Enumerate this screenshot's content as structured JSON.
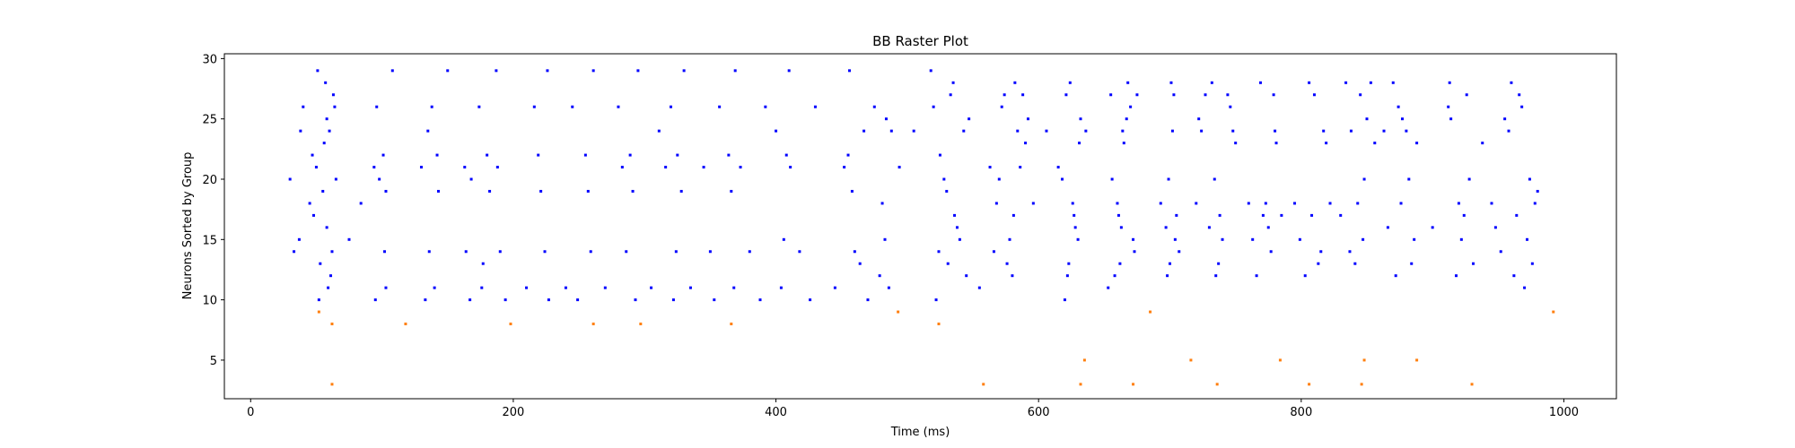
{
  "chart_data": {
    "type": "scatter",
    "title": "BB Raster Plot",
    "xlabel": "Time (ms)",
    "ylabel": "Neurons Sorted by Group",
    "xlim": [
      -20,
      1040
    ],
    "ylim": [
      1.8,
      30.4
    ],
    "xticks": [
      0,
      200,
      400,
      600,
      800,
      1000
    ],
    "yticks": [
      5,
      10,
      15,
      20,
      25,
      30
    ],
    "grid": false,
    "series": [
      {
        "color": "#0000ff",
        "points": [
          [
            30,
            20
          ],
          [
            33,
            14
          ],
          [
            37,
            15
          ],
          [
            38,
            24
          ],
          [
            40,
            26
          ],
          [
            45,
            18
          ],
          [
            47,
            22
          ],
          [
            48,
            17
          ],
          [
            50,
            21
          ],
          [
            51,
            29
          ],
          [
            52,
            10
          ],
          [
            53,
            13
          ],
          [
            55,
            19
          ],
          [
            56,
            23
          ],
          [
            57,
            28
          ],
          [
            58,
            16
          ],
          [
            58,
            25
          ],
          [
            59,
            11
          ],
          [
            60,
            24
          ],
          [
            61,
            12
          ],
          [
            62,
            14
          ],
          [
            63,
            27
          ],
          [
            64,
            26
          ],
          [
            65,
            20
          ],
          [
            75,
            15
          ],
          [
            84,
            18
          ],
          [
            94,
            21
          ],
          [
            95,
            10
          ],
          [
            96,
            26
          ],
          [
            98,
            20
          ],
          [
            101,
            22
          ],
          [
            102,
            14
          ],
          [
            103,
            19
          ],
          [
            103,
            11
          ],
          [
            108,
            29
          ],
          [
            130,
            21
          ],
          [
            133,
            10
          ],
          [
            135,
            24
          ],
          [
            136,
            14
          ],
          [
            138,
            26
          ],
          [
            140,
            11
          ],
          [
            142,
            22
          ],
          [
            143,
            19
          ],
          [
            150,
            29
          ],
          [
            163,
            21
          ],
          [
            164,
            14
          ],
          [
            167,
            10
          ],
          [
            168,
            20
          ],
          [
            174,
            26
          ],
          [
            176,
            11
          ],
          [
            177,
            13
          ],
          [
            180,
            22
          ],
          [
            182,
            19
          ],
          [
            187,
            29
          ],
          [
            188,
            21
          ],
          [
            190,
            14
          ],
          [
            194,
            10
          ],
          [
            210,
            11
          ],
          [
            216,
            26
          ],
          [
            219,
            22
          ],
          [
            221,
            19
          ],
          [
            224,
            14
          ],
          [
            226,
            29
          ],
          [
            227,
            10
          ],
          [
            240,
            11
          ],
          [
            245,
            26
          ],
          [
            249,
            10
          ],
          [
            255,
            22
          ],
          [
            257,
            19
          ],
          [
            259,
            14
          ],
          [
            261,
            29
          ],
          [
            270,
            11
          ],
          [
            280,
            26
          ],
          [
            283,
            21
          ],
          [
            286,
            14
          ],
          [
            289,
            22
          ],
          [
            291,
            19
          ],
          [
            293,
            10
          ],
          [
            295,
            29
          ],
          [
            305,
            11
          ],
          [
            311,
            24
          ],
          [
            316,
            21
          ],
          [
            320,
            26
          ],
          [
            322,
            10
          ],
          [
            324,
            14
          ],
          [
            325,
            22
          ],
          [
            328,
            19
          ],
          [
            330,
            29
          ],
          [
            335,
            11
          ],
          [
            345,
            21
          ],
          [
            350,
            14
          ],
          [
            353,
            10
          ],
          [
            357,
            26
          ],
          [
            364,
            22
          ],
          [
            366,
            19
          ],
          [
            368,
            11
          ],
          [
            369,
            29
          ],
          [
            373,
            21
          ],
          [
            380,
            14
          ],
          [
            388,
            10
          ],
          [
            392,
            26
          ],
          [
            400,
            24
          ],
          [
            404,
            11
          ],
          [
            406,
            15
          ],
          [
            408,
            22
          ],
          [
            410,
            29
          ],
          [
            411,
            21
          ],
          [
            418,
            14
          ],
          [
            426,
            10
          ],
          [
            430,
            26
          ],
          [
            445,
            11
          ],
          [
            452,
            21
          ],
          [
            455,
            22
          ],
          [
            456,
            29
          ],
          [
            458,
            19
          ],
          [
            460,
            14
          ],
          [
            464,
            13
          ],
          [
            467,
            24
          ],
          [
            470,
            10
          ],
          [
            475,
            26
          ],
          [
            479,
            12
          ],
          [
            481,
            18
          ],
          [
            483,
            15
          ],
          [
            484,
            25
          ],
          [
            486,
            11
          ],
          [
            488,
            24
          ],
          [
            494,
            21
          ],
          [
            505,
            24
          ],
          [
            518,
            29
          ],
          [
            520,
            26
          ],
          [
            522,
            10
          ],
          [
            524,
            14
          ],
          [
            525,
            22
          ],
          [
            528,
            20
          ],
          [
            530,
            19
          ],
          [
            531,
            13
          ],
          [
            533,
            27
          ],
          [
            535,
            28
          ],
          [
            536,
            17
          ],
          [
            538,
            16
          ],
          [
            540,
            15
          ],
          [
            543,
            24
          ],
          [
            545,
            12
          ],
          [
            547,
            25
          ],
          [
            555,
            11
          ],
          [
            563,
            21
          ],
          [
            566,
            14
          ],
          [
            568,
            18
          ],
          [
            570,
            20
          ],
          [
            572,
            26
          ],
          [
            574,
            27
          ],
          [
            576,
            13
          ],
          [
            578,
            15
          ],
          [
            580,
            12
          ],
          [
            581,
            17
          ],
          [
            582,
            28
          ],
          [
            584,
            24
          ],
          [
            586,
            21
          ],
          [
            588,
            27
          ],
          [
            590,
            23
          ],
          [
            592,
            25
          ],
          [
            596,
            18
          ],
          [
            606,
            24
          ],
          [
            615,
            21
          ],
          [
            618,
            20
          ],
          [
            620,
            10
          ],
          [
            621,
            27
          ],
          [
            622,
            12
          ],
          [
            623,
            13
          ],
          [
            624,
            28
          ],
          [
            626,
            18
          ],
          [
            627,
            17
          ],
          [
            628,
            16
          ],
          [
            630,
            15
          ],
          [
            631,
            23
          ],
          [
            632,
            25
          ],
          [
            636,
            24
          ],
          [
            653,
            11
          ],
          [
            655,
            27
          ],
          [
            656,
            20
          ],
          [
            658,
            12
          ],
          [
            660,
            18
          ],
          [
            661,
            17
          ],
          [
            662,
            13
          ],
          [
            663,
            16
          ],
          [
            664,
            24
          ],
          [
            665,
            23
          ],
          [
            667,
            25
          ],
          [
            668,
            28
          ],
          [
            670,
            26
          ],
          [
            672,
            15
          ],
          [
            673,
            14
          ],
          [
            675,
            27
          ],
          [
            693,
            18
          ],
          [
            697,
            16
          ],
          [
            698,
            12
          ],
          [
            699,
            20
          ],
          [
            700,
            13
          ],
          [
            701,
            28
          ],
          [
            702,
            24
          ],
          [
            703,
            27
          ],
          [
            704,
            15
          ],
          [
            705,
            17
          ],
          [
            707,
            14
          ],
          [
            720,
            18
          ],
          [
            722,
            25
          ],
          [
            724,
            24
          ],
          [
            727,
            27
          ],
          [
            730,
            16
          ],
          [
            732,
            28
          ],
          [
            734,
            20
          ],
          [
            735,
            12
          ],
          [
            737,
            13
          ],
          [
            738,
            17
          ],
          [
            740,
            15
          ],
          [
            744,
            27
          ],
          [
            746,
            26
          ],
          [
            748,
            24
          ],
          [
            750,
            23
          ],
          [
            760,
            18
          ],
          [
            763,
            15
          ],
          [
            766,
            12
          ],
          [
            769,
            28
          ],
          [
            771,
            17
          ],
          [
            773,
            18
          ],
          [
            775,
            16
          ],
          [
            777,
            14
          ],
          [
            779,
            27
          ],
          [
            780,
            24
          ],
          [
            781,
            23
          ],
          [
            785,
            17
          ],
          [
            795,
            18
          ],
          [
            799,
            15
          ],
          [
            803,
            12
          ],
          [
            806,
            28
          ],
          [
            808,
            17
          ],
          [
            810,
            27
          ],
          [
            813,
            13
          ],
          [
            815,
            14
          ],
          [
            817,
            24
          ],
          [
            819,
            23
          ],
          [
            822,
            18
          ],
          [
            830,
            17
          ],
          [
            834,
            28
          ],
          [
            837,
            14
          ],
          [
            838,
            24
          ],
          [
            841,
            13
          ],
          [
            843,
            18
          ],
          [
            845,
            27
          ],
          [
            847,
            15
          ],
          [
            848,
            20
          ],
          [
            850,
            25
          ],
          [
            853,
            28
          ],
          [
            856,
            23
          ],
          [
            863,
            24
          ],
          [
            866,
            16
          ],
          [
            870,
            28
          ],
          [
            872,
            12
          ],
          [
            874,
            26
          ],
          [
            876,
            18
          ],
          [
            877,
            25
          ],
          [
            880,
            24
          ],
          [
            882,
            20
          ],
          [
            884,
            13
          ],
          [
            886,
            15
          ],
          [
            888,
            23
          ],
          [
            900,
            16
          ],
          [
            912,
            26
          ],
          [
            913,
            28
          ],
          [
            914,
            25
          ],
          [
            918,
            12
          ],
          [
            920,
            18
          ],
          [
            922,
            15
          ],
          [
            924,
            17
          ],
          [
            926,
            27
          ],
          [
            928,
            20
          ],
          [
            931,
            13
          ],
          [
            938,
            23
          ],
          [
            945,
            18
          ],
          [
            948,
            16
          ],
          [
            952,
            14
          ],
          [
            955,
            25
          ],
          [
            958,
            24
          ],
          [
            960,
            28
          ],
          [
            962,
            12
          ],
          [
            964,
            17
          ],
          [
            966,
            27
          ],
          [
            968,
            26
          ],
          [
            970,
            11
          ],
          [
            972,
            15
          ],
          [
            974,
            20
          ],
          [
            976,
            13
          ],
          [
            978,
            18
          ],
          [
            980,
            19
          ]
        ]
      },
      {
        "color": "#ff7f0e",
        "points": [
          [
            52,
            9
          ],
          [
            62,
            8
          ],
          [
            62,
            3
          ],
          [
            118,
            8
          ],
          [
            198,
            8
          ],
          [
            261,
            8
          ],
          [
            297,
            8
          ],
          [
            366,
            8
          ],
          [
            493,
            9
          ],
          [
            524,
            8
          ],
          [
            558,
            3
          ],
          [
            632,
            3
          ],
          [
            635,
            5
          ],
          [
            672,
            3
          ],
          [
            685,
            9
          ],
          [
            716,
            5
          ],
          [
            736,
            3
          ],
          [
            784,
            5
          ],
          [
            806,
            3
          ],
          [
            846,
            3
          ],
          [
            848,
            5
          ],
          [
            888,
            5
          ],
          [
            930,
            3
          ],
          [
            992,
            9
          ]
        ]
      }
    ]
  }
}
